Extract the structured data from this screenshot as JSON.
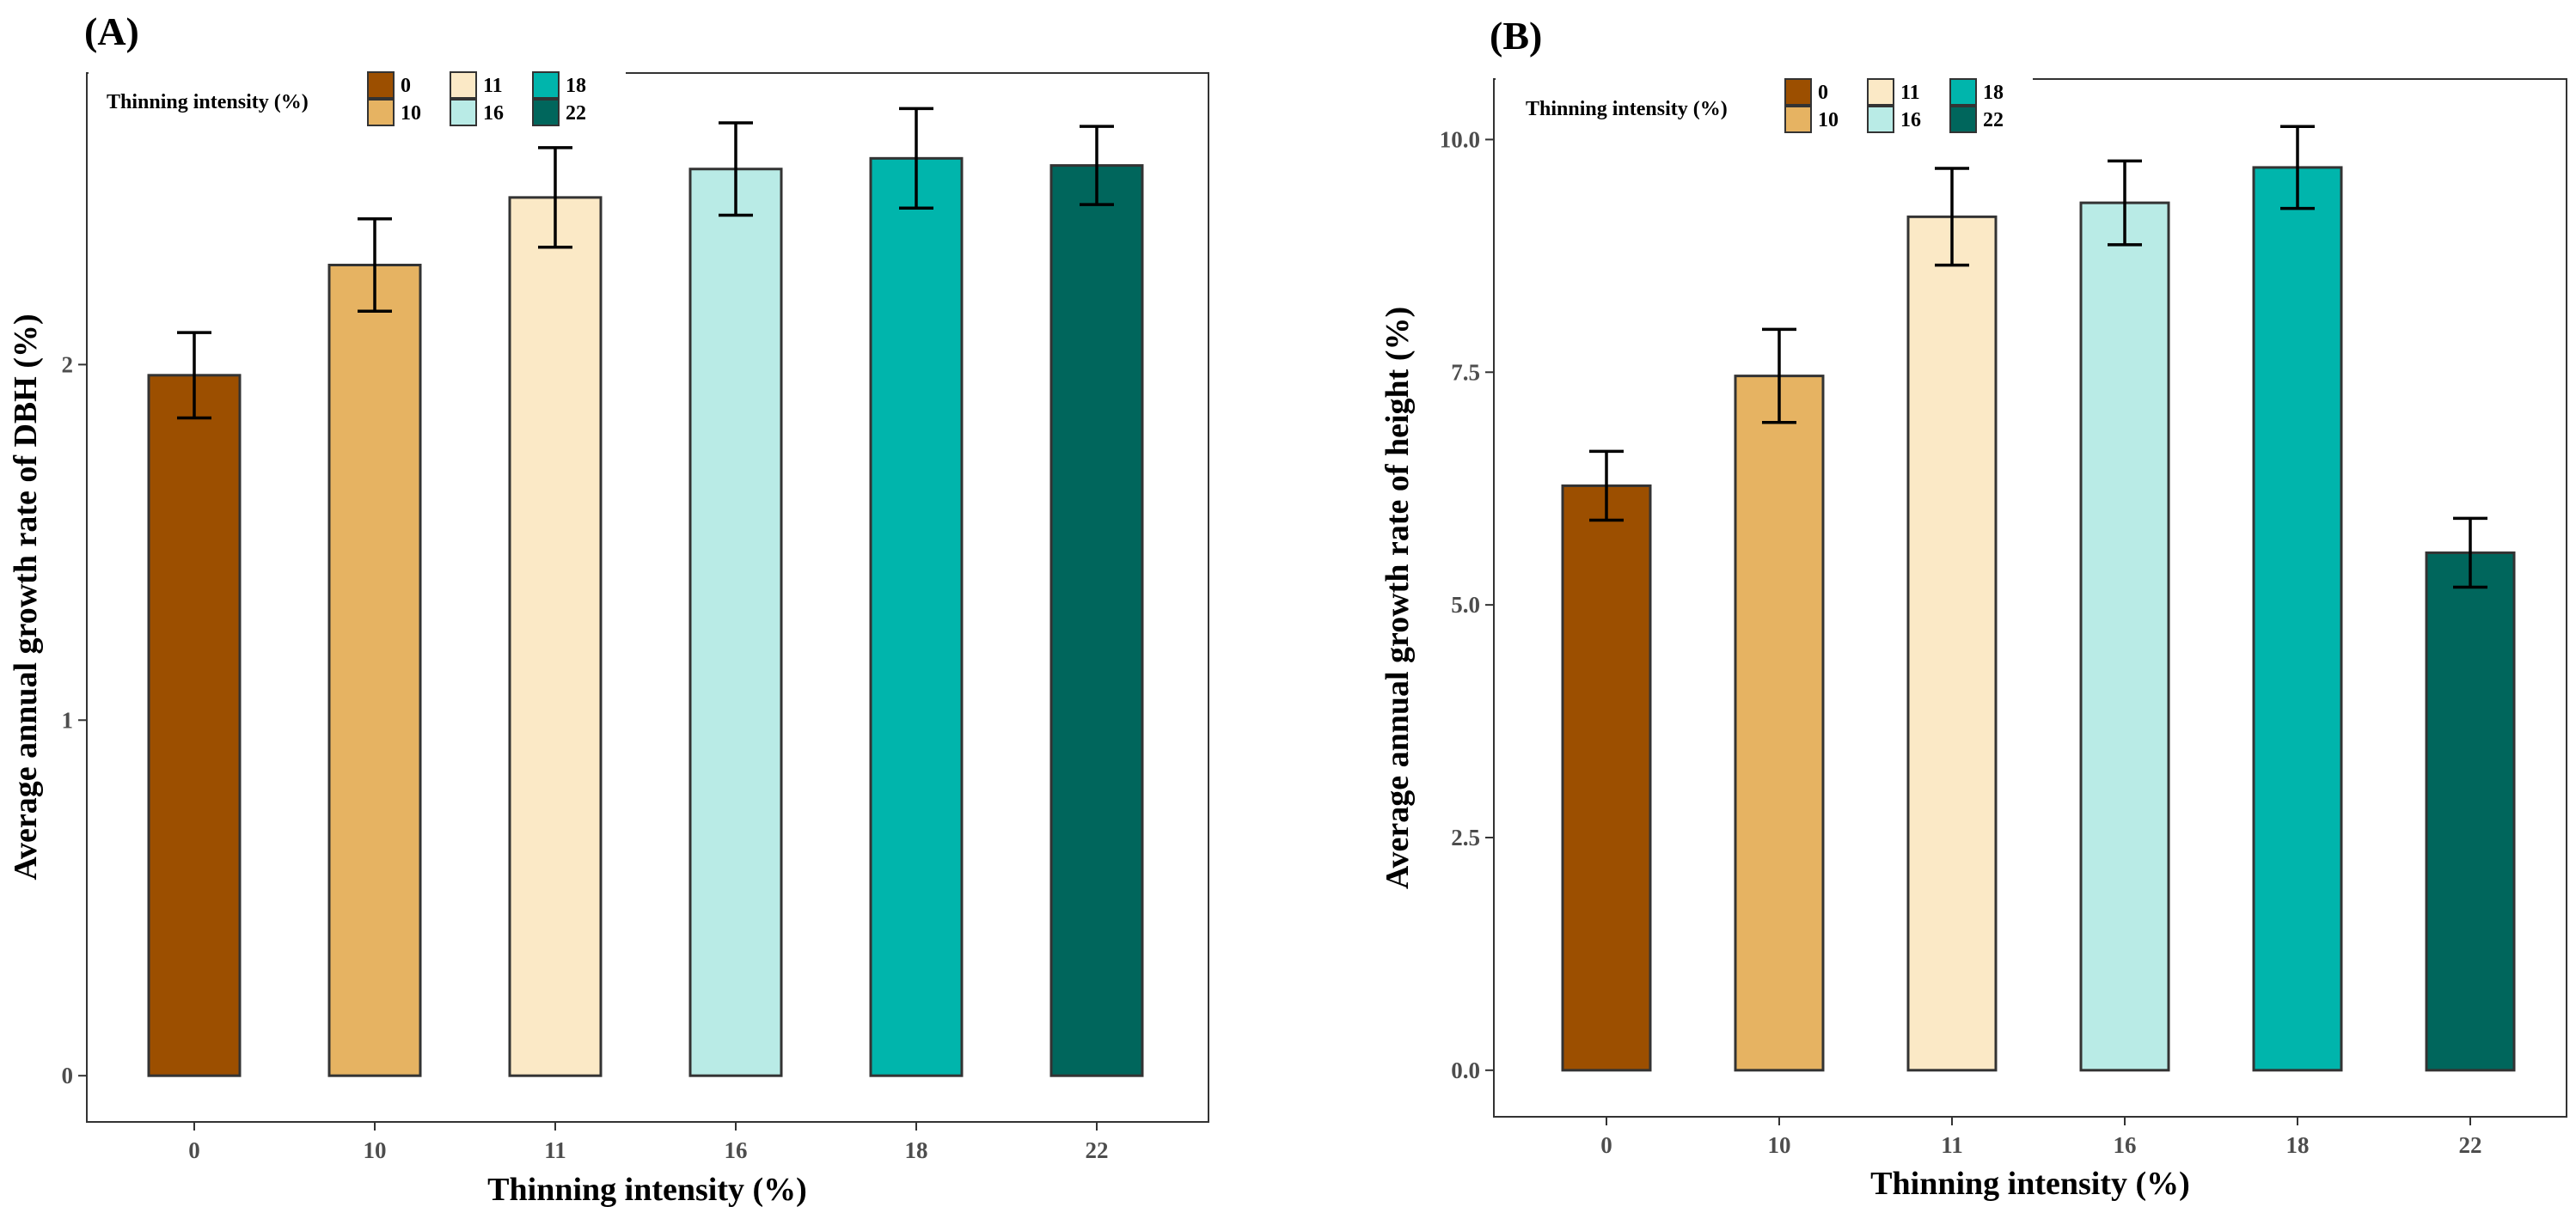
{
  "chart_data": [
    {
      "panel": "(A)",
      "type": "bar",
      "categories": [
        "0",
        "10",
        "11",
        "16",
        "18",
        "22"
      ],
      "values": [
        1.97,
        2.28,
        2.47,
        2.55,
        2.58,
        2.56
      ],
      "errors": [
        0.12,
        0.13,
        0.14,
        0.13,
        0.14,
        0.11
      ],
      "colors": [
        "#9c4f00",
        "#e6b362",
        "#fbe9c6",
        "#b9ebe6",
        "#00b5ac",
        "#00665c"
      ],
      "xlabel": "Thinning intensity (%)",
      "ylabel": "Average annual growth rate of DBH (%)",
      "yticks": [
        0,
        1,
        2
      ],
      "ytick_labels": [
        "0",
        "1",
        "2"
      ],
      "ylim": [
        -0.13,
        2.82
      ],
      "legend": {
        "title": "Thinning intensity (%)",
        "labels": [
          "0",
          "10",
          "11",
          "16",
          "18",
          "22"
        ],
        "position": "top-left"
      }
    },
    {
      "panel": "(B)",
      "type": "bar",
      "categories": [
        "0",
        "10",
        "11",
        "16",
        "18",
        "22"
      ],
      "values": [
        6.28,
        7.46,
        9.17,
        9.32,
        9.7,
        5.56
      ],
      "errors": [
        0.37,
        0.5,
        0.52,
        0.45,
        0.44,
        0.37
      ],
      "colors": [
        "#9c4f00",
        "#e6b362",
        "#fbe9c6",
        "#b9ebe6",
        "#00b5ac",
        "#00665c"
      ],
      "xlabel": "Thinning intensity (%)",
      "ylabel": "Average annual growth rate of height (%)",
      "yticks": [
        0,
        2.5,
        5,
        7.5,
        10
      ],
      "ytick_labels": [
        "0.0",
        "2.5",
        "5.0",
        "7.5",
        "10.0"
      ],
      "ylim": [
        -0.5,
        10.65
      ],
      "legend": {
        "title": "Thinning intensity (%)",
        "labels": [
          "0",
          "10",
          "11",
          "16",
          "18",
          "22"
        ],
        "position": "top-left"
      }
    }
  ]
}
